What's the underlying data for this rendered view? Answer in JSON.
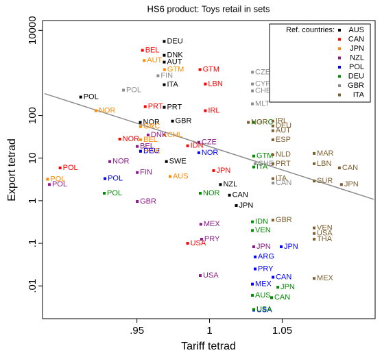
{
  "chart_data": {
    "type": "scatter",
    "title": "HS6 product:  Toys retail in sets",
    "x_label": "Tariff tetrad",
    "y_label": "Export tetrad",
    "log_y": true,
    "xlim": [
      0.885,
      1.114
    ],
    "ylim": [
      0.0017,
      17000
    ],
    "xticks": [
      {
        "value": 0.95,
        "label": ".95"
      },
      1,
      {
        "value": 1.05,
        "label": "1.05"
      }
    ],
    "yticks": [
      {
        "value": 0.01,
        "label": ".01"
      },
      {
        "value": 0.1,
        "label": ".1"
      },
      1,
      10,
      100,
      10000
    ],
    "legend_title": "Ref. countries:",
    "legend_position": "upper right",
    "series": [
      {
        "name": "AUS",
        "color": "#000000",
        "labels": [
          "POL",
          "DEU",
          "DNK",
          "AUT",
          "ITA",
          "PRT",
          "NOR",
          "GBR",
          "SWE",
          "NZL",
          "CAN",
          "JPN"
        ],
        "x": [
          0.9113,
          0.9688,
          0.9688,
          0.9688,
          0.9688,
          0.9688,
          0.9523,
          0.9745,
          0.9703,
          1.0075,
          1.0137,
          1.0184
        ],
        "values": [
          272,
          5500,
          2600,
          1800,
          530,
          156,
          69,
          74,
          8.3,
          2.4,
          1.35,
          0.77
        ]
      },
      {
        "name": "CAN",
        "color": "#ff0000",
        "labels": [
          "POL",
          "NOR",
          "BEL",
          "PRT",
          "GTM",
          "LBN",
          "IRL",
          "IDN",
          "JPN",
          "USA"
        ],
        "x": [
          0.8971,
          0.9382,
          0.9538,
          0.9557,
          0.9934,
          0.9971,
          0.9971,
          0.9849,
          1.0028,
          0.9849
        ],
        "values": [
          5.9,
          28,
          3400,
          162,
          1200,
          550,
          130,
          19.5,
          5.1,
          0.1
        ]
      },
      {
        "name": "JPN",
        "color": "#ff8c00",
        "labels": [
          "POL",
          "NOR",
          "AUT",
          "GTM",
          "GRC",
          "BEL",
          "SWE",
          "CHL",
          "AUS"
        ],
        "x": [
          0.8885,
          0.9218,
          0.955,
          0.969,
          0.9525,
          0.9525,
          0.9525,
          0.969,
          0.9728
        ],
        "values": [
          3.2,
          130,
          1960,
          1200,
          55,
          27,
          14.5,
          35,
          3.7
        ]
      },
      {
        "name": "NZL",
        "color": "#8b1a89",
        "labels": [
          "POL",
          "NOR",
          "DNK",
          "BEL",
          "FIN",
          "GBR",
          "CZE",
          "MEX",
          "PRY",
          "JPN",
          "USA"
        ],
        "x": [
          0.8897,
          0.9313,
          0.9577,
          0.9502,
          0.9502,
          0.9502,
          0.9926,
          0.994,
          0.9945,
          1.0304,
          0.9936
        ],
        "values": [
          2.4,
          8.3,
          35,
          18.8,
          4.6,
          0.96,
          23.5,
          0.28,
          0.125,
          0.083,
          0.0175
        ]
      },
      {
        "name": "POL",
        "color": "#0000ff",
        "labels": [
          "POL",
          "DEU",
          "NOR",
          "ARG",
          "PRY",
          "JPN",
          "CAN",
          "MEX",
          "USA"
        ],
        "x": [
          0.928,
          0.9525,
          0.9926,
          1.0314,
          1.0314,
          1.0493,
          1.0437,
          1.0295,
          1.0304
        ],
        "values": [
          3.3,
          14.5,
          13.4,
          0.048,
          0.025,
          0.083,
          0.016,
          0.011,
          0.0027
        ]
      },
      {
        "name": "DEU",
        "color": "#008b00",
        "labels": [
          "POL",
          "NOR",
          "GRC",
          "GTM",
          "ITA",
          "IDN",
          "VEN",
          "JPN",
          "AUS",
          "CAN",
          "USA"
        ],
        "x": [
          0.9275,
          0.9936,
          1.0304,
          1.0304,
          1.0304,
          1.0295,
          1.0295,
          1.047,
          1.0295,
          1.0427,
          1.0304
        ],
        "values": [
          1.5,
          1.5,
          69,
          11.2,
          6.2,
          0.32,
          0.2,
          0.0093,
          0.006,
          0.0053,
          0.0028
        ]
      },
      {
        "name": "GBR",
        "color": "#8c8c8c",
        "labels": [
          "POL",
          "FIN",
          "CZE",
          "CYP",
          "CHE",
          "MLT",
          "CHE",
          "CAN"
        ],
        "x": [
          0.9407,
          0.9645,
          1.0295,
          1.0295,
          1.0295,
          1.0295,
          1.0314,
          1.0437
        ],
        "values": [
          395,
          860,
          1040,
          550,
          380,
          188,
          7.4,
          2.6
        ]
      },
      {
        "name": "ITA",
        "color": "#7f5f2f",
        "labels": [
          "NOR",
          "IRL",
          "DEU",
          "AUT",
          "ESP",
          "NLD",
          "PRT",
          "ITA",
          "GBR",
          "MAR",
          "LBN",
          "CAN",
          "SUR",
          "JPN",
          "VEN",
          "USA",
          "THA",
          "MEX"
        ],
        "x": [
          1.0267,
          1.0436,
          1.0436,
          1.0436,
          1.0436,
          1.0436,
          1.0436,
          1.0436,
          1.0436,
          1.072,
          1.072,
          1.0894,
          1.072,
          1.0908,
          1.072,
          1.072,
          1.072,
          1.072
        ],
        "values": [
          69,
          74,
          57,
          44,
          27,
          12,
          7.4,
          3.3,
          0.35,
          12.9,
          7.4,
          5.9,
          2.9,
          2.4,
          0.23,
          0.17,
          0.125,
          0.015
        ]
      }
    ],
    "fit_line": {
      "color": "#8c8c8c",
      "x": [
        0.8864,
        1.113
      ],
      "values": [
        328,
        1.08
      ]
    }
  }
}
